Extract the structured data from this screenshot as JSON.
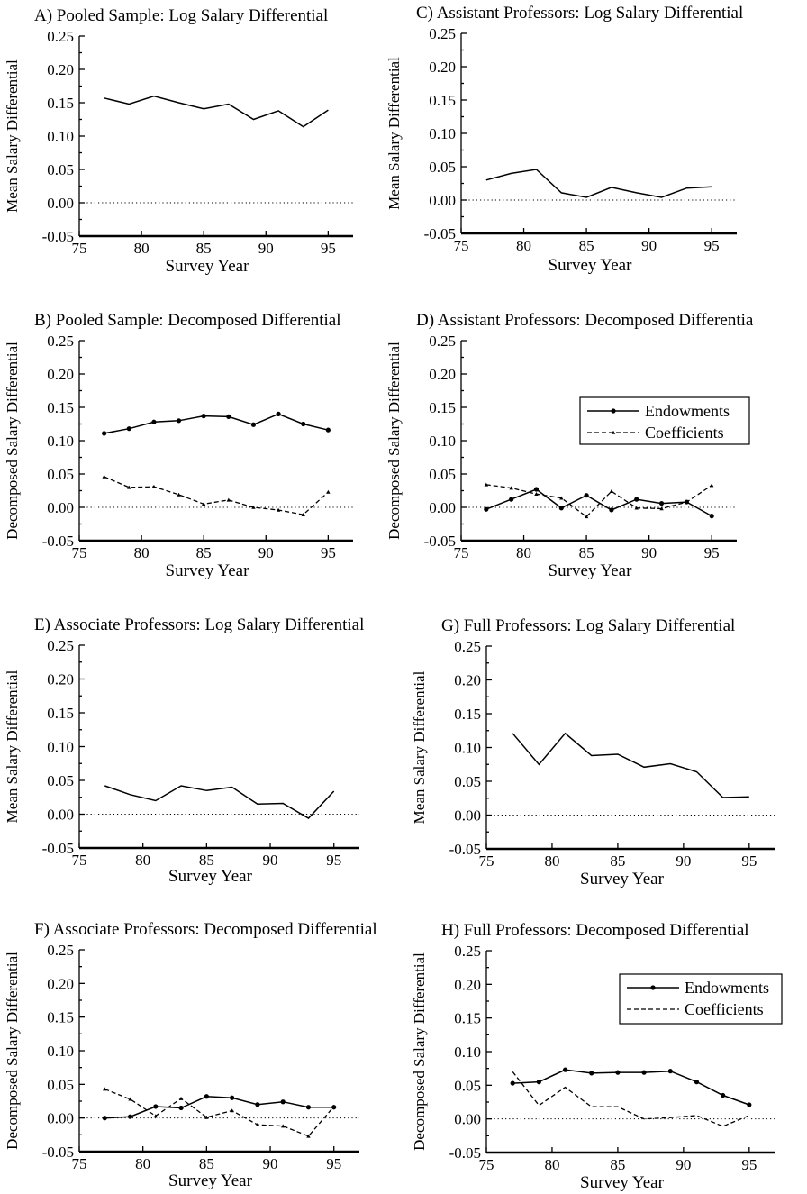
{
  "chart_data": [
    {
      "id": "A",
      "type": "line",
      "title": "A) Pooled Sample: Log Salary Differential",
      "xlabel": "Survey Year",
      "ylabel": "Mean Salary Differential",
      "xlim": [
        75,
        97
      ],
      "ylim": [
        -0.05,
        0.25
      ],
      "xticks": [
        "75",
        "80",
        "85",
        "90",
        "95"
      ],
      "yticks": [
        "0.25",
        "0.20",
        "0.15",
        "0.10",
        "0.05",
        "0.00",
        "-0.05"
      ],
      "x": [
        77,
        79,
        81,
        83,
        85,
        87,
        89,
        91,
        93,
        95
      ],
      "series": [
        {
          "style": "solid",
          "markers": false,
          "values": [
            0.157,
            0.148,
            0.16,
            0.15,
            0.141,
            0.148,
            0.125,
            0.138,
            0.114,
            0.139
          ]
        }
      ],
      "legend": null
    },
    {
      "id": "B",
      "type": "line",
      "title": "B) Pooled Sample: Decomposed Differential",
      "xlabel": "Survey Year",
      "ylabel": "Decomposed Salary Differential",
      "xlim": [
        75,
        97
      ],
      "ylim": [
        -0.05,
        0.25
      ],
      "xticks": [
        "75",
        "80",
        "85",
        "90",
        "95"
      ],
      "yticks": [
        "0.25",
        "0.20",
        "0.15",
        "0.10",
        "0.05",
        "0.00",
        "-0.05"
      ],
      "x": [
        77,
        79,
        81,
        83,
        85,
        87,
        89,
        91,
        93,
        95
      ],
      "series": [
        {
          "style": "solid",
          "markers": true,
          "values": [
            0.111,
            0.118,
            0.128,
            0.13,
            0.137,
            0.136,
            0.124,
            0.14,
            0.125,
            0.116
          ]
        },
        {
          "style": "dashed",
          "markers": true,
          "values": [
            0.046,
            0.03,
            0.031,
            0.019,
            0.005,
            0.011,
            0.0,
            -0.004,
            -0.011,
            0.023
          ]
        }
      ],
      "legend": null
    },
    {
      "id": "C",
      "type": "line",
      "title": "C) Assistant Professors: Log Salary Differential",
      "xlabel": "Survey Year",
      "ylabel": "Mean Salary Differential",
      "xlim": [
        75,
        97
      ],
      "ylim": [
        -0.05,
        0.25
      ],
      "xticks": [
        "75",
        "80",
        "85",
        "90",
        "95"
      ],
      "yticks": [
        "0.25",
        "0.20",
        "0.15",
        "0.10",
        "0.05",
        "0.00",
        "-0.05"
      ],
      "x": [
        77,
        79,
        81,
        83,
        85,
        87,
        89,
        91,
        93,
        95
      ],
      "series": [
        {
          "style": "solid",
          "markers": false,
          "values": [
            0.03,
            0.04,
            0.046,
            0.011,
            0.004,
            0.019,
            0.011,
            0.004,
            0.018,
            0.02
          ]
        }
      ],
      "legend": null
    },
    {
      "id": "D",
      "type": "line",
      "title": "D) Assistant Professors: Decomposed Differentia",
      "xlabel": "Survey Year",
      "ylabel": "Decomposed Salary Differential",
      "xlim": [
        75,
        97
      ],
      "ylim": [
        -0.05,
        0.25
      ],
      "xticks": [
        "75",
        "80",
        "85",
        "90",
        "95"
      ],
      "yticks": [
        "0.25",
        "0.20",
        "0.15",
        "0.10",
        "0.05",
        "0.00",
        "-0.05"
      ],
      "x": [
        77,
        79,
        81,
        83,
        85,
        87,
        89,
        91,
        93,
        95
      ],
      "series": [
        {
          "name": "Endowments",
          "style": "solid",
          "markers": true,
          "values": [
            -0.003,
            0.012,
            0.027,
            -0.001,
            0.018,
            -0.004,
            0.012,
            0.006,
            0.008,
            -0.013
          ]
        },
        {
          "name": "Coefficients",
          "style": "dashed",
          "markers": true,
          "values": [
            0.034,
            0.029,
            0.02,
            0.014,
            -0.014,
            0.024,
            -0.001,
            -0.002,
            0.008,
            0.033
          ]
        }
      ],
      "legend": "right"
    },
    {
      "id": "E",
      "type": "line",
      "title": "E) Associate Professors: Log Salary Differential",
      "xlabel": "Survey Year",
      "ylabel": "Mean Salary Differential",
      "xlim": [
        75,
        97
      ],
      "ylim": [
        -0.05,
        0.25
      ],
      "xticks": [
        "75",
        "80",
        "85",
        "90",
        "95"
      ],
      "yticks": [
        "0.25",
        "0.20",
        "0.15",
        "0.10",
        "0.05",
        "0.00",
        "-0.05"
      ],
      "x": [
        77,
        79,
        81,
        83,
        85,
        87,
        89,
        91,
        93,
        95
      ],
      "series": [
        {
          "style": "solid",
          "markers": false,
          "values": [
            0.042,
            0.029,
            0.02,
            0.042,
            0.035,
            0.04,
            0.015,
            0.016,
            -0.006,
            0.034
          ]
        }
      ],
      "legend": null
    },
    {
      "id": "F",
      "type": "line",
      "title": "F) Associate Professors: Decomposed Differential",
      "xlabel": "Survey Year",
      "ylabel": "Decomposed Salary Differential",
      "xlim": [
        75,
        97
      ],
      "ylim": [
        -0.05,
        0.25
      ],
      "xticks": [
        "75",
        "80",
        "85",
        "90",
        "95"
      ],
      "yticks": [
        "0.25",
        "0.20",
        "0.15",
        "0.10",
        "0.05",
        "0.00",
        "-0.05"
      ],
      "x": [
        77,
        79,
        81,
        83,
        85,
        87,
        89,
        91,
        93,
        95
      ],
      "series": [
        {
          "style": "solid",
          "markers": true,
          "values": [
            0.0,
            0.002,
            0.017,
            0.015,
            0.032,
            0.03,
            0.02,
            0.024,
            0.016,
            0.016
          ]
        },
        {
          "style": "dashed",
          "markers": true,
          "values": [
            0.043,
            0.028,
            0.003,
            0.029,
            0.001,
            0.011,
            -0.01,
            -0.012,
            -0.027,
            0.017
          ]
        }
      ],
      "legend": null
    },
    {
      "id": "G",
      "type": "line",
      "title": "G) Full Professors: Log Salary Differential",
      "xlabel": "Survey Year",
      "ylabel": "Mean Salary Differential",
      "xlim": [
        75,
        97
      ],
      "ylim": [
        -0.05,
        0.25
      ],
      "xticks": [
        "75",
        "80",
        "85",
        "90",
        "95"
      ],
      "yticks": [
        "0.25",
        "0.20",
        "0.15",
        "0.10",
        "0.05",
        "0.00",
        "-0.05"
      ],
      "x": [
        77,
        79,
        81,
        83,
        85,
        87,
        89,
        91,
        93,
        95
      ],
      "series": [
        {
          "style": "solid",
          "markers": false,
          "values": [
            0.121,
            0.075,
            0.121,
            0.088,
            0.09,
            0.071,
            0.076,
            0.064,
            0.026,
            0.027
          ]
        }
      ],
      "legend": null
    },
    {
      "id": "H",
      "type": "line",
      "title": "H) Full Professors: Decomposed Differential",
      "xlabel": "Survey Year",
      "ylabel": "Decomposed Salary Differential",
      "xlim": [
        75,
        97
      ],
      "ylim": [
        -0.05,
        0.25
      ],
      "xticks": [
        "75",
        "80",
        "85",
        "90",
        "95"
      ],
      "yticks": [
        "0.25",
        "0.20",
        "0.15",
        "0.10",
        "0.05",
        "0.00",
        "-0.05"
      ],
      "x": [
        77,
        79,
        81,
        83,
        85,
        87,
        89,
        91,
        93,
        95
      ],
      "series": [
        {
          "name": "Endowments",
          "style": "solid",
          "markers": true,
          "values": [
            0.053,
            0.055,
            0.073,
            0.068,
            0.069,
            0.069,
            0.071,
            0.055,
            0.035,
            0.021
          ]
        },
        {
          "name": "Coefficients",
          "style": "dashed",
          "markers": false,
          "values": [
            0.07,
            0.02,
            0.047,
            0.018,
            0.018,
            0.0,
            0.002,
            0.005,
            -0.011,
            0.005
          ]
        }
      ],
      "legend": "top-right"
    }
  ]
}
